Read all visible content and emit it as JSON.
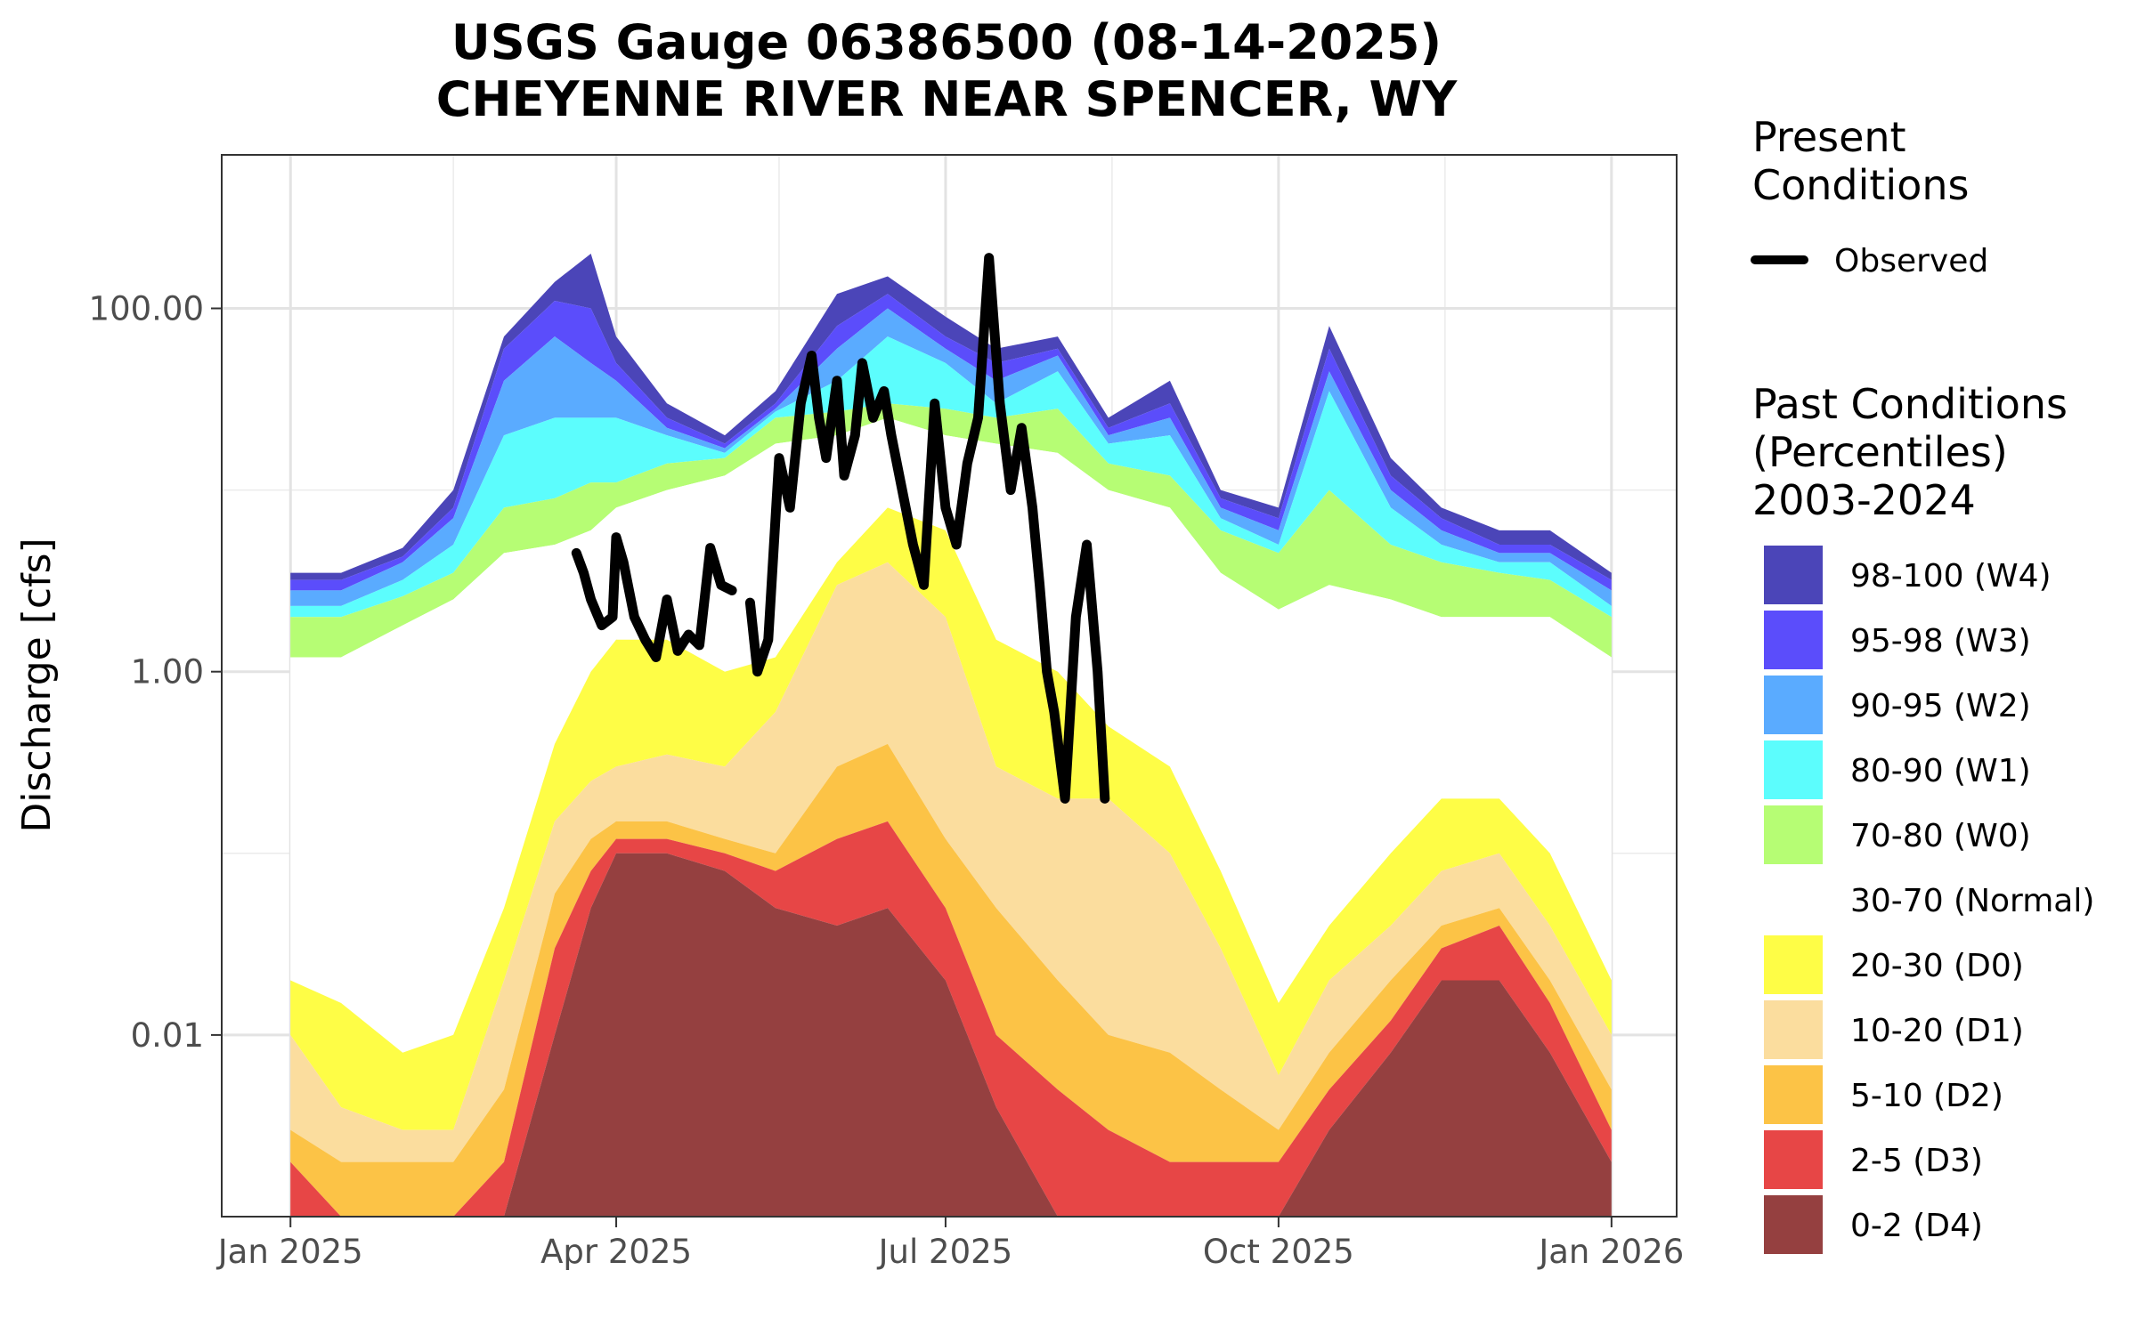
{
  "chart_data": {
    "type": "area",
    "title": "USGS Gauge 06386500 (08-14-2025)",
    "subtitle": "CHEYENNE RIVER NEAR SPENCER, WY",
    "ylabel": "Discharge [cfs]",
    "xlabel": "",
    "y_scale": "log",
    "ylim": [
      0.001,
      700
    ],
    "xlim": [
      "2024-12-13",
      "2026-01-19"
    ],
    "x_ticks": [
      "2025-01-01",
      "2025-04-01",
      "2025-07-01",
      "2025-10-01",
      "2026-01-01"
    ],
    "x_tick_labels": [
      "Jan 2025",
      "Apr 2025",
      "Jul 2025",
      "Oct 2025",
      "Jan 2026"
    ],
    "y_ticks": [
      0.01,
      1,
      100
    ],
    "y_tick_labels": [
      "0.01",
      "1.00",
      "100.00"
    ],
    "grid": true,
    "legend_placement": "right",
    "legend": {
      "present_title": "Present Conditions",
      "observed_label": "Observed",
      "past_title": "Past Conditions (Percentiles) 2003-2024",
      "past_title_lines": [
        "Past Conditions",
        "(Percentiles)",
        "2003-2024"
      ],
      "present_title_lines": [
        "Present",
        "Conditions"
      ]
    },
    "bands": [
      {
        "name": "98-100 (W4)",
        "color": "#4b45b8"
      },
      {
        "name": "95-98 (W3)",
        "color": "#5b4dfb"
      },
      {
        "name": "90-95 (W2)",
        "color": "#5aabff"
      },
      {
        "name": "80-90 (W1)",
        "color": "#5cfdfd"
      },
      {
        "name": "70-80 (W0)",
        "color": "#b6fd74"
      },
      {
        "name": "30-70 (Normal)",
        "color": "#ffffff"
      },
      {
        "name": "20-30 (D0)",
        "color": "#fefd46"
      },
      {
        "name": "10-20 (D1)",
        "color": "#fbdd9e"
      },
      {
        "name": "5-10 (D2)",
        "color": "#fcc346"
      },
      {
        "name": "2-5 (D3)",
        "color": "#e74646"
      },
      {
        "name": "0-2 (D4)",
        "color": "#954040"
      }
    ],
    "dates": [
      "2025-01-01",
      "2025-01-15",
      "2025-02-01",
      "2025-02-15",
      "2025-03-01",
      "2025-03-15",
      "2025-03-25",
      "2025-04-01",
      "2025-04-15",
      "2025-05-01",
      "2025-05-15",
      "2025-06-01",
      "2025-06-15",
      "2025-07-01",
      "2025-07-15",
      "2025-08-01",
      "2025-08-15",
      "2025-09-01",
      "2025-09-15",
      "2025-10-01",
      "2025-10-15",
      "2025-11-01",
      "2025-11-15",
      "2025-12-01",
      "2025-12-15",
      "2026-01-01"
    ],
    "percentile_bounds": [
      {
        "level": "p100",
        "values": [
          3.5,
          3.5,
          4.8,
          10,
          70,
          140,
          200,
          70,
          30,
          20,
          35,
          120,
          150,
          90,
          60,
          70,
          25,
          40,
          10,
          8,
          80,
          15,
          8,
          6,
          6,
          3.5
        ]
      },
      {
        "level": "p98",
        "values": [
          3.2,
          3.2,
          4.3,
          8,
          60,
          110,
          100,
          50,
          25,
          18,
          30,
          80,
          120,
          70,
          50,
          60,
          22,
          30,
          9,
          7,
          60,
          12,
          7,
          5,
          5,
          3.2
        ]
      },
      {
        "level": "p95",
        "values": [
          2.8,
          2.8,
          4,
          7,
          40,
          70,
          50,
          40,
          22,
          17,
          28,
          60,
          100,
          60,
          40,
          55,
          20,
          25,
          8,
          6,
          45,
          10,
          6,
          4.5,
          4.5,
          2.8
        ]
      },
      {
        "level": "p90",
        "values": [
          2.3,
          2.3,
          3.2,
          5,
          20,
          25,
          25,
          25,
          20,
          16,
          27,
          40,
          70,
          50,
          30,
          45,
          18,
          20,
          7,
          5,
          35,
          8,
          5,
          4,
          4,
          2.3
        ]
      },
      {
        "level": "p80",
        "values": [
          2.0,
          2.0,
          2.6,
          3.5,
          8,
          9,
          11,
          11,
          14,
          15,
          25,
          27,
          30,
          28,
          25,
          28,
          14,
          12,
          6,
          4.5,
          10,
          5,
          4,
          3.5,
          3.2,
          2.0
        ]
      },
      {
        "level": "p70",
        "values": [
          1.2,
          1.2,
          1.8,
          2.5,
          4.5,
          5,
          6,
          8,
          10,
          12,
          18,
          20,
          25,
          20,
          18,
          16,
          10,
          8,
          3.5,
          2.2,
          3,
          2.5,
          2,
          2,
          2,
          1.2
        ]
      },
      {
        "level": "p30",
        "values": [
          0.02,
          0.015,
          0.008,
          0.01,
          0.05,
          0.4,
          1,
          1.5,
          1.5,
          1,
          1.2,
          4,
          8,
          6,
          1.5,
          1,
          0.5,
          0.3,
          0.08,
          0.015,
          0.04,
          0.1,
          0.2,
          0.2,
          0.1,
          0.02
        ]
      },
      {
        "level": "p20",
        "values": [
          0.01,
          0.004,
          0.003,
          0.003,
          0.02,
          0.15,
          0.25,
          0.3,
          0.35,
          0.3,
          0.6,
          3,
          4,
          2,
          0.3,
          0.2,
          0.2,
          0.1,
          0.03,
          0.006,
          0.02,
          0.04,
          0.08,
          0.1,
          0.04,
          0.01
        ]
      },
      {
        "level": "p10",
        "values": [
          0.003,
          0.002,
          0.002,
          0.002,
          0.005,
          0.06,
          0.12,
          0.15,
          0.15,
          0.12,
          0.1,
          0.3,
          0.4,
          0.12,
          0.05,
          0.02,
          0.01,
          0.008,
          0.005,
          0.003,
          0.008,
          0.02,
          0.04,
          0.05,
          0.02,
          0.005
        ]
      },
      {
        "level": "p5",
        "values": [
          0.002,
          0.001,
          0.001,
          0.001,
          0.002,
          0.03,
          0.08,
          0.12,
          0.12,
          0.1,
          0.08,
          0.12,
          0.15,
          0.05,
          0.01,
          0.005,
          0.003,
          0.002,
          0.002,
          0.002,
          0.005,
          0.012,
          0.03,
          0.04,
          0.015,
          0.003
        ]
      },
      {
        "level": "p2",
        "values": [
          0.001,
          0.001,
          0.001,
          0.001,
          0.001,
          0.01,
          0.05,
          0.1,
          0.1,
          0.08,
          0.05,
          0.04,
          0.05,
          0.02,
          0.004,
          0.001,
          0.001,
          0.001,
          0.001,
          0.001,
          0.003,
          0.008,
          0.02,
          0.02,
          0.008,
          0.002
        ]
      },
      {
        "level": "p0",
        "values": [
          0.001,
          0.001,
          0.001,
          0.001,
          0.001,
          0.001,
          0.001,
          0.001,
          0.001,
          0.001,
          0.001,
          0.001,
          0.001,
          0.001,
          0.001,
          0.001,
          0.001,
          0.001,
          0.001,
          0.001,
          0.001,
          0.001,
          0.001,
          0.001,
          0.001,
          0.001
        ]
      }
    ],
    "observed": {
      "name": "Observed",
      "x": [
        "2025-03-21",
        "2025-03-23",
        "2025-03-25",
        "2025-03-28",
        "2025-03-31",
        "2025-04-01",
        "2025-04-03",
        "2025-04-06",
        "2025-04-09",
        "2025-04-12",
        "2025-04-15",
        "2025-04-18",
        "2025-04-21",
        "2025-04-24",
        "2025-04-27",
        "2025-04-30",
        "2025-05-03",
        "2025-05-08",
        "2025-05-10",
        "2025-05-13",
        "2025-05-16",
        "2025-05-19",
        "2025-05-22",
        "2025-05-25",
        "2025-05-27",
        "2025-05-29",
        "2025-06-01",
        "2025-06-03",
        "2025-06-06",
        "2025-06-08",
        "2025-06-11",
        "2025-06-14",
        "2025-06-16",
        "2025-06-19",
        "2025-06-22",
        "2025-06-25",
        "2025-06-28",
        "2025-07-01",
        "2025-07-04",
        "2025-07-07",
        "2025-07-10",
        "2025-07-13",
        "2025-07-16",
        "2025-07-19",
        "2025-07-22",
        "2025-07-25",
        "2025-07-27",
        "2025-07-29",
        "2025-07-31",
        "2025-08-03",
        "2025-08-06",
        "2025-08-09",
        "2025-08-12",
        "2025-08-14"
      ],
      "y": [
        4.5,
        3.5,
        2.5,
        1.8,
        2.0,
        5.5,
        4.0,
        2.0,
        1.5,
        1.2,
        2.5,
        1.3,
        1.6,
        1.4,
        4.8,
        3.0,
        2.8,
        2.4,
        1.0,
        1.5,
        15,
        8,
        30,
        55,
        25,
        15,
        40,
        12,
        20,
        50,
        25,
        35,
        20,
        10,
        5,
        3,
        30,
        8,
        5,
        14,
        25,
        190,
        30,
        10,
        22,
        8,
        3,
        1,
        0.6,
        0.2,
        2,
        5,
        1,
        0.2
      ]
    }
  }
}
